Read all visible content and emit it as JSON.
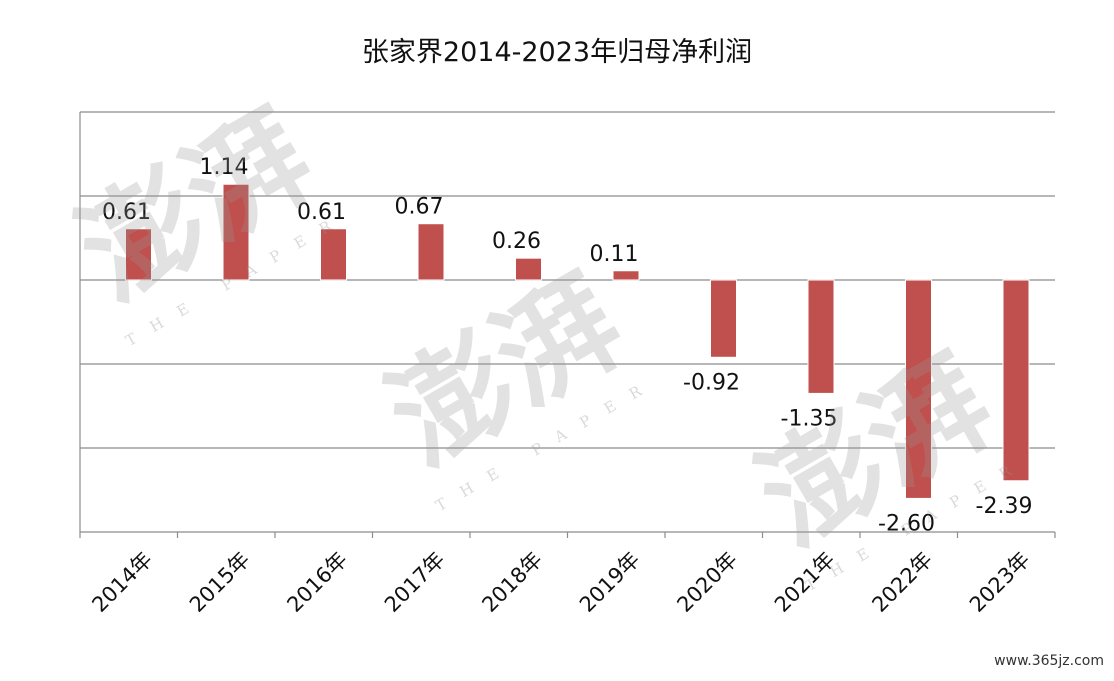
{
  "chart_data": {
    "type": "bar",
    "title": "张家界2014-2023年归母净利润",
    "categories": [
      "2014年",
      "2015年",
      "2016年",
      "2017年",
      "2018年",
      "2019年",
      "2020年",
      "2021年",
      "2022年",
      "2023年"
    ],
    "values": [
      0.61,
      1.14,
      0.61,
      0.67,
      0.26,
      0.11,
      -0.92,
      -1.35,
      -2.6,
      -2.39
    ],
    "data_labels": [
      "0.61",
      "1.14",
      "0.61",
      "0.67",
      "0.26",
      "0.11",
      "-0.92",
      "-1.35",
      "-2.60",
      "-2.39"
    ],
    "xlabel": "",
    "ylabel": "",
    "ylim": [
      -3,
      2
    ],
    "grid": true,
    "bar_color": "#c0504d"
  },
  "watermark": {
    "text": "澎湃",
    "subtext": "THE PAPER"
  },
  "site_label": "www.365jz.com"
}
